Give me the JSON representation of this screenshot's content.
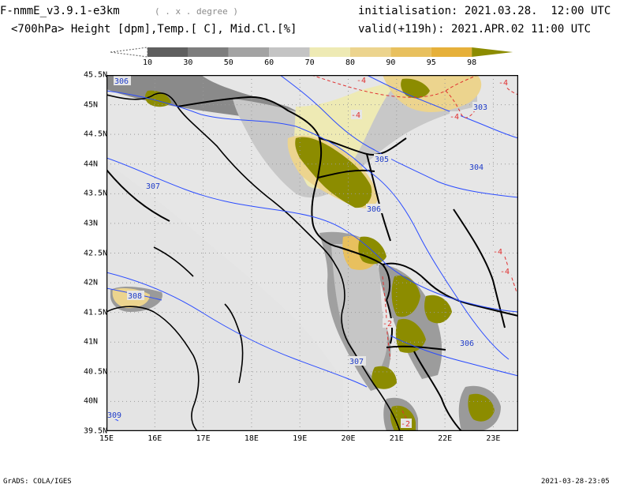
{
  "header": {
    "model": "F-nmmE_v3.9.1-e3km",
    "projection_note": "( . x . degree )",
    "fields": "<700hPa> Height [dpm],Temp.[ C], Mid.Cl.[%]",
    "initialisation": "initialisation: 2021.03.28.  12:00 UTC",
    "valid": "valid(+119h): 2021.APR.02 11:00 UTC"
  },
  "colorbar": {
    "labels": [
      "10",
      "30",
      "50",
      "60",
      "70",
      "80",
      "90",
      "95",
      "98"
    ],
    "colors": [
      "#ffffff",
      "#5f5f5f",
      "#7d7d7d",
      "#a3a3a3",
      "#c4c4c4",
      "#eeeab4",
      "#ecd48e",
      "#e8c05e",
      "#e6b03a",
      "#8c8c00"
    ]
  },
  "map": {
    "lat_labels": [
      "45.5N",
      "45N",
      "44.5N",
      "44N",
      "43.5N",
      "43N",
      "42.5N",
      "42N",
      "41.5N",
      "41N",
      "40.5N",
      "40N",
      "39.5N"
    ],
    "lon_labels": [
      "15E",
      "16E",
      "17E",
      "18E",
      "19E",
      "20E",
      "21E",
      "22E",
      "23E"
    ],
    "height_contours": [
      "306",
      "305",
      "304",
      "303",
      "307",
      "306",
      "308",
      "307",
      "306",
      "309"
    ],
    "temp_contours": [
      "-4",
      "-4",
      "-4",
      "-4",
      "-4",
      "-4",
      "-2",
      "-2"
    ],
    "colors": {
      "background": "#e6e6e6",
      "height_line": "#2b4cff",
      "height_label": "#1f3cc8",
      "temp_line": "#e03030",
      "coast": "#000000",
      "grid": "#9a9a9a"
    }
  },
  "footer": {
    "left": "GrADS: COLA/IGES",
    "right": "2021-03-28-23:05"
  }
}
